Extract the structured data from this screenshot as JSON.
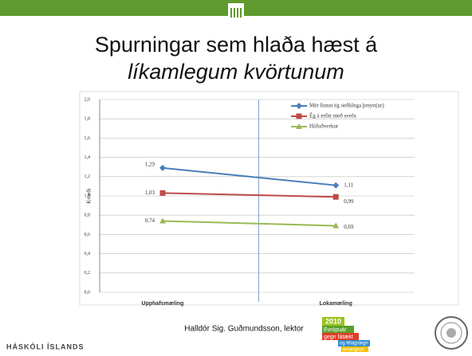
{
  "slide": {
    "title_line1": "Spurningar sem hlaða hæst á",
    "title_line2": "líkamlegum kvörtunum",
    "author": "Halldór Sig. Guðmundsson, lektor",
    "university": "HÁSKÓLI ÍSLANDS",
    "badge": [
      "2010",
      "Evrópuár",
      "gegn fátækt",
      "og félagslegri",
      "einangrun"
    ]
  },
  "chart_data": {
    "type": "line",
    "ylabel": "Kvarði",
    "categories": [
      "Upphafsmæling",
      "Lokamæling"
    ],
    "series": [
      {
        "name": "Mér finnst ég óeðlilega þreytt(ur)",
        "color": "#4a7ebb",
        "marker": "diamond",
        "values": [
          1.29,
          1.11
        ],
        "value_labels": [
          "1,29",
          "1,11"
        ]
      },
      {
        "name": "Ég á erfitt með svefn",
        "color": "#be4b48",
        "marker": "square",
        "values": [
          1.03,
          0.99
        ],
        "value_labels": [
          "1,03",
          "0,99"
        ]
      },
      {
        "name": "Höfuðverkur",
        "color": "#98b954",
        "marker": "triangle",
        "values": [
          0.74,
          0.69
        ],
        "value_labels": [
          "0,74",
          "0,69"
        ]
      }
    ],
    "ylim": [
      0,
      2
    ],
    "yticks": [
      {
        "value": 0,
        "label": "0,0"
      },
      {
        "value": 0.2,
        "label": "0,2"
      },
      {
        "value": 0.4,
        "label": "0,4"
      },
      {
        "value": 0.6,
        "label": "0,6"
      },
      {
        "value": 0.8,
        "label": "0,8"
      },
      {
        "value": 1,
        "label": "1,0"
      },
      {
        "value": 1.2,
        "label": "1,2"
      },
      {
        "value": 1.4,
        "label": "1,4"
      },
      {
        "value": 1.6,
        "label": "1,6"
      },
      {
        "value": 1.8,
        "label": "1,8"
      },
      {
        "value": 2,
        "label": "2,0"
      }
    ],
    "grid": true
  }
}
